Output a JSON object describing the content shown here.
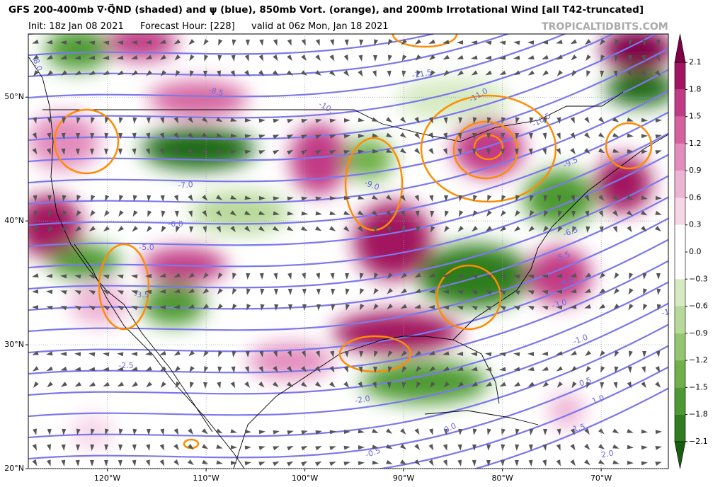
{
  "header": {
    "title": "GFS 200-400mb ∇·Q⃗ND (shaded) and ψ (blue), 850mb Vort. (orange), and 200mb Irrotational Wind [all T42-truncated]",
    "init": "Init: 18z Jan 08 2021",
    "forecast_hour": "Forecast Hour: [228]",
    "valid": "valid at 06z Mon, Jan 18 2021",
    "watermark": "TROPICALTIDBITS.COM"
  },
  "map": {
    "xlim": [
      -128,
      -63.2
    ],
    "ylim": [
      20,
      55.1
    ],
    "xticks": [
      {
        "value": -120,
        "label": "120°W"
      },
      {
        "value": -110,
        "label": "110°W"
      },
      {
        "value": -100,
        "label": "100°W"
      },
      {
        "value": -90,
        "label": "90°W"
      },
      {
        "value": -80,
        "label": "80°W"
      },
      {
        "value": -70,
        "label": "70°W"
      }
    ],
    "yticks": [
      {
        "value": 20,
        "label": "20°N"
      },
      {
        "value": 30,
        "label": "30°N"
      },
      {
        "value": 40,
        "label": "40°N"
      },
      {
        "value": 50,
        "label": "50°N"
      }
    ],
    "grid": true,
    "streamfunction_labels": [
      "-8.0",
      "-11.5",
      "-11.0",
      "-10.5",
      "-8.5",
      "-10.",
      "-7.0",
      "-9.0",
      "-6.0",
      "-5.0",
      "-3.5",
      "-2.5",
      "-2.0",
      "-0.5",
      "0.0",
      "0.5",
      "1.0",
      "1.5",
      "2.0",
      "-3.0",
      "-4.0",
      "-6.5",
      "-5.5",
      "-9.5",
      "-1.0",
      "-1"
    ]
  },
  "colorbar": {
    "clim": [
      -2.25,
      2.25
    ],
    "ticks": [
      {
        "value": -2.1,
        "label": "−2.1"
      },
      {
        "value": -1.8,
        "label": "−1.8"
      },
      {
        "value": -1.5,
        "label": "−1.5"
      },
      {
        "value": -1.2,
        "label": "−1.2"
      },
      {
        "value": -0.9,
        "label": "−0.9"
      },
      {
        "value": -0.6,
        "label": "−0.6"
      },
      {
        "value": -0.3,
        "label": "−0.3"
      },
      {
        "value": 0,
        "label": "0.0"
      },
      0.3,
      0.6,
      0.9,
      1.2,
      1.5,
      1.8,
      2.1
    ],
    "colors": [
      "#1a5d10",
      "#2f7d1f",
      "#4e9a32",
      "#6fb04a",
      "#94c66f",
      "#b7d99a",
      "#d5eac1",
      "#ffffff",
      "#ffffff",
      "#f7d6e8",
      "#eeb4d4",
      "#e38cbd",
      "#d5629f",
      "#c13a85",
      "#a2145f",
      "#7f0046"
    ]
  }
}
